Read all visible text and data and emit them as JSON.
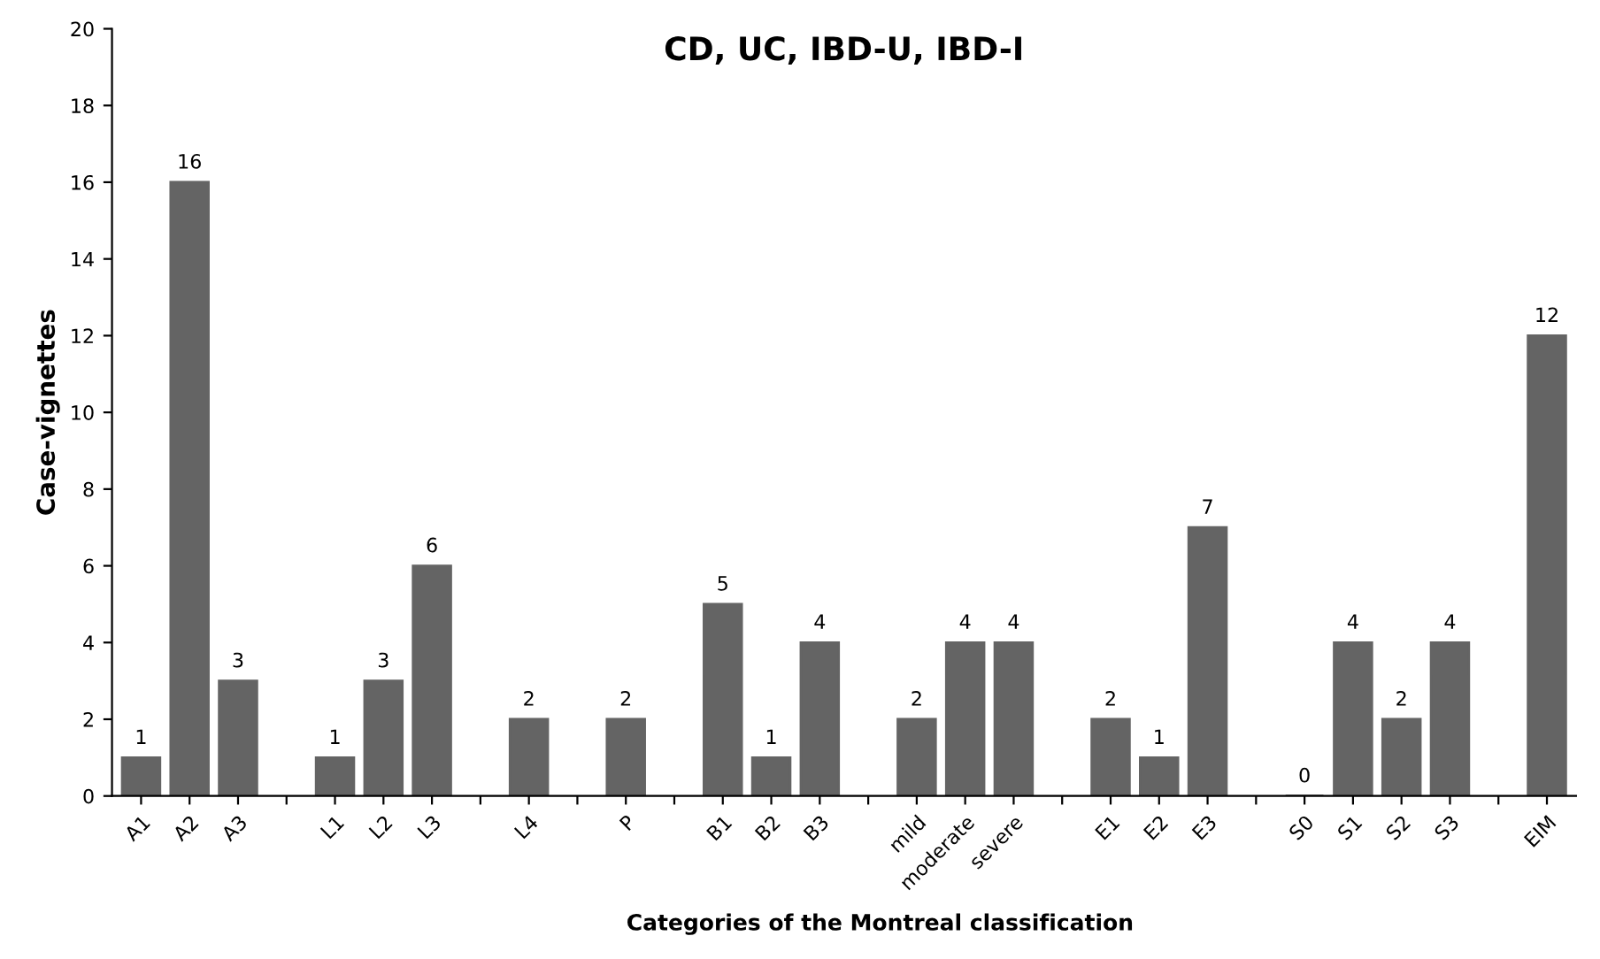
{
  "chart_data": {
    "type": "bar",
    "title": "CD, UC, IBD-U, IBD-I",
    "xlabel": "Categories of the Montreal classification",
    "ylabel": "Case-vignettes",
    "categories": [
      "A1",
      "A2",
      "A3",
      null,
      "L1",
      "L2",
      "L3",
      null,
      "L4",
      null,
      "P",
      null,
      "B1",
      "B2",
      "B3",
      null,
      "mild",
      "moderate",
      "severe",
      null,
      "E1",
      "E2",
      "E3",
      null,
      "S0",
      "S1",
      "S2",
      "S3",
      null,
      "EIM"
    ],
    "values": [
      1,
      16,
      3,
      null,
      1,
      3,
      6,
      null,
      2,
      null,
      2,
      null,
      5,
      1,
      4,
      null,
      2,
      4,
      4,
      null,
      2,
      1,
      7,
      null,
      0,
      4,
      2,
      4,
      null,
      12
    ],
    "color": "#646464",
    "ylim": [
      0,
      20
    ],
    "yticks": [
      0,
      2,
      4,
      6,
      8,
      10,
      12,
      14,
      16,
      18,
      20
    ],
    "grid": false,
    "data_labels": true
  }
}
